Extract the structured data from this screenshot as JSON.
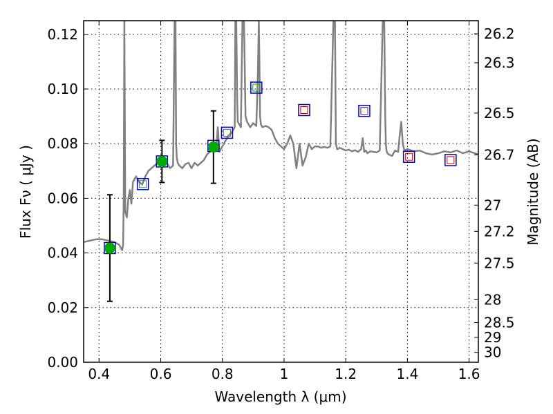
{
  "chart_data": {
    "type": "scatter",
    "xlabel": "Wavelength  λ (μm)",
    "ylabel": "Flux  Fν  ( μJy )",
    "ylabel_right": "Magnitude (AB)",
    "xlim": [
      0.35,
      1.63
    ],
    "ylim": [
      0.0,
      0.125
    ],
    "x_ticks": [
      0.4,
      0.6,
      0.8,
      1.0,
      1.2,
      1.4,
      1.6
    ],
    "x_tick_labels": [
      "0.4",
      "0.6",
      "0.8",
      "1",
      "1.2",
      "1.4",
      "1.6"
    ],
    "y_ticks": [
      0.0,
      0.02,
      0.04,
      0.06,
      0.08,
      0.1,
      0.12
    ],
    "y_tick_labels": [
      "0.00",
      "0.02",
      "0.04",
      "0.06",
      "0.08",
      "0.10",
      "0.12"
    ],
    "magnitude_ticks": [
      {
        "label": "26.2",
        "flux": 0.1202
      },
      {
        "label": "26.3",
        "flux": 0.1096
      },
      {
        "label": "26.5",
        "flux": 0.0912
      },
      {
        "label": "26.7",
        "flux": 0.0759
      },
      {
        "label": "27",
        "flux": 0.0575
      },
      {
        "label": "27.2",
        "flux": 0.0479
      },
      {
        "label": "27.5",
        "flux": 0.0363
      },
      {
        "label": "28",
        "flux": 0.0229
      },
      {
        "label": "28.5",
        "flux": 0.0145
      },
      {
        "label": "29",
        "flux": 0.0091
      },
      {
        "label": "30",
        "flux": 0.0036
      }
    ],
    "grid": true,
    "series": [
      {
        "kind": "model_spectrum",
        "color": "#808080",
        "x": [
          0.35,
          0.37,
          0.39,
          0.41,
          0.43,
          0.45,
          0.465,
          0.47,
          0.475,
          0.478,
          0.48,
          0.482,
          0.485,
          0.49,
          0.495,
          0.5,
          0.505,
          0.51,
          0.52,
          0.53,
          0.54,
          0.55,
          0.56,
          0.57,
          0.58,
          0.59,
          0.6,
          0.61,
          0.62,
          0.63,
          0.64,
          0.645,
          0.648,
          0.65,
          0.652,
          0.655,
          0.66,
          0.67,
          0.68,
          0.69,
          0.7,
          0.71,
          0.72,
          0.73,
          0.74,
          0.75,
          0.76,
          0.77,
          0.775,
          0.78,
          0.785,
          0.79,
          0.8,
          0.81,
          0.82,
          0.83,
          0.84,
          0.842,
          0.845,
          0.848,
          0.85,
          0.86,
          0.865,
          0.87,
          0.875,
          0.88,
          0.89,
          0.9,
          0.91,
          0.915,
          0.918,
          0.92,
          0.922,
          0.925,
          0.93,
          0.94,
          0.95,
          0.96,
          0.97,
          0.98,
          0.99,
          1.0,
          1.01,
          1.02,
          1.03,
          1.04,
          1.05,
          1.06,
          1.07,
          1.08,
          1.09,
          1.1,
          1.11,
          1.12,
          1.13,
          1.14,
          1.15,
          1.16,
          1.165,
          1.168,
          1.17,
          1.172,
          1.175,
          1.18,
          1.19,
          1.2,
          1.21,
          1.22,
          1.23,
          1.24,
          1.25,
          1.255,
          1.26,
          1.265,
          1.27,
          1.28,
          1.29,
          1.3,
          1.31,
          1.32,
          1.325,
          1.328,
          1.33,
          1.332,
          1.335,
          1.34,
          1.35,
          1.36,
          1.37,
          1.375,
          1.38,
          1.385,
          1.39,
          1.4,
          1.42,
          1.44,
          1.46,
          1.48,
          1.5,
          1.52,
          1.54,
          1.56,
          1.58,
          1.6,
          1.63
        ],
        "y": [
          0.044,
          0.0445,
          0.045,
          0.045,
          0.0445,
          0.044,
          0.043,
          0.042,
          0.041,
          0.043,
          0.06,
          0.125,
          0.055,
          0.053,
          0.06,
          0.063,
          0.058,
          0.066,
          0.068,
          0.066,
          0.065,
          0.068,
          0.07,
          0.071,
          0.072,
          0.073,
          0.074,
          0.074,
          0.073,
          0.071,
          0.072,
          0.125,
          0.125,
          0.08,
          0.075,
          0.073,
          0.072,
          0.071,
          0.0725,
          0.073,
          0.071,
          0.073,
          0.072,
          0.073,
          0.074,
          0.076,
          0.077,
          0.078,
          0.08,
          0.078,
          0.086,
          0.077,
          0.079,
          0.081,
          0.083,
          0.084,
          0.086,
          0.125,
          0.125,
          0.095,
          0.088,
          0.086,
          0.125,
          0.125,
          0.09,
          0.088,
          0.086,
          0.0875,
          0.0865,
          0.105,
          0.125,
          0.11,
          0.09,
          0.087,
          0.086,
          0.0865,
          0.086,
          0.085,
          0.082,
          0.08,
          0.079,
          0.078,
          0.08,
          0.083,
          0.08,
          0.071,
          0.08,
          0.072,
          0.075,
          0.08,
          0.078,
          0.079,
          0.079,
          0.0785,
          0.0788,
          0.0785,
          0.079,
          0.125,
          0.125,
          0.08,
          0.079,
          0.078,
          0.078,
          0.0785,
          0.078,
          0.0775,
          0.0778,
          0.0772,
          0.0776,
          0.077,
          0.078,
          0.082,
          0.077,
          0.0775,
          0.0765,
          0.0772,
          0.077,
          0.0768,
          0.0775,
          0.125,
          0.125,
          0.09,
          0.08,
          0.0775,
          0.0765,
          0.076,
          0.0755,
          0.0775,
          0.077,
          0.083,
          0.088,
          0.08,
          0.0775,
          0.078,
          0.0772,
          0.0775,
          0.0765,
          0.076,
          0.0765,
          0.0772,
          0.0768,
          0.0775,
          0.0765,
          0.0772,
          0.076
        ]
      },
      {
        "kind": "model_photometry_squares",
        "color": "#0000cc",
        "x": [
          0.435,
          0.542,
          0.604,
          0.771,
          0.815,
          0.91,
          1.065,
          1.26,
          1.405,
          1.54
        ],
        "y": [
          0.0418,
          0.0652,
          0.0735,
          0.0792,
          0.084,
          0.1005,
          0.0923,
          0.092,
          0.0752,
          0.074
        ]
      },
      {
        "kind": "observed_flux_green",
        "color": "#00aa00",
        "x": [
          0.435,
          0.604,
          0.771
        ],
        "y": [
          0.0418,
          0.0735,
          0.0788
        ],
        "err_low": [
          0.0223,
          0.0658,
          0.0655
        ],
        "err_high": [
          0.0613,
          0.0812,
          0.092
        ]
      },
      {
        "kind": "green_open_squares",
        "color": "#00aa00",
        "x": [
          0.542,
          0.815,
          0.91
        ],
        "y": [
          0.0652,
          0.084,
          0.1005
        ]
      },
      {
        "kind": "red_open_squares",
        "color": "#cc0000",
        "x": [
          1.065,
          1.26,
          1.405,
          1.54
        ],
        "y": [
          0.0923,
          0.092,
          0.0752,
          0.074
        ]
      }
    ]
  }
}
